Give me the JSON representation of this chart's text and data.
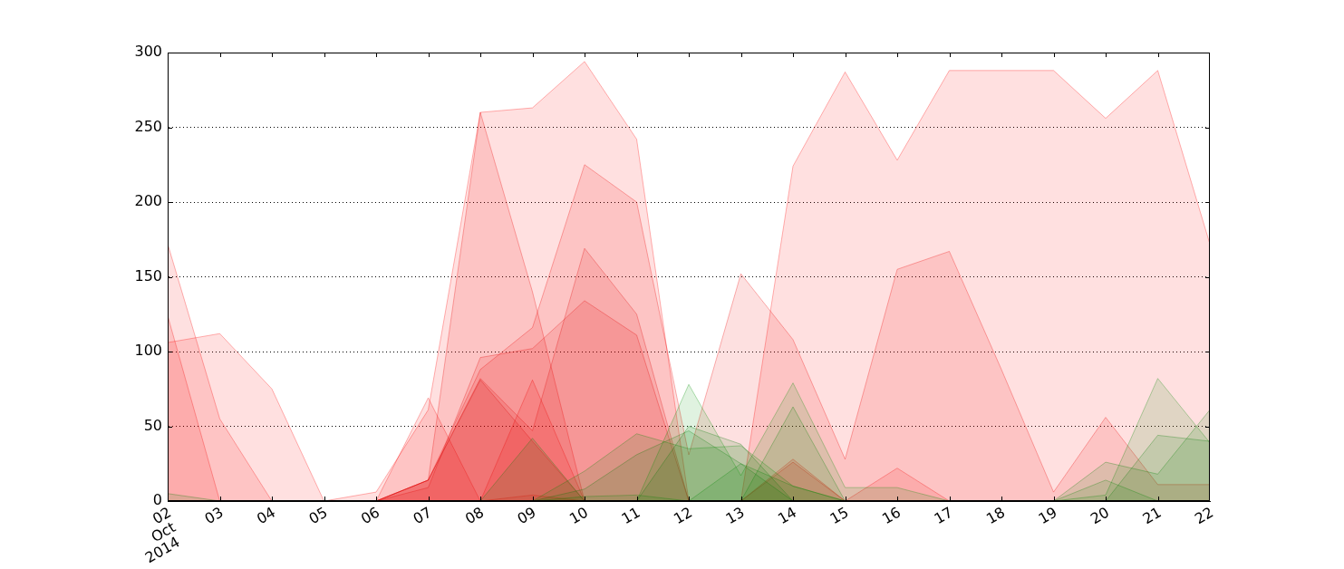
{
  "chart_data": {
    "type": "area",
    "x": [
      "2014-10-02",
      "2014-10-03",
      "2014-10-04",
      "2014-10-05",
      "2014-10-06",
      "2014-10-07",
      "2014-10-08",
      "2014-10-09",
      "2014-10-10",
      "2014-10-11",
      "2014-10-12",
      "2014-10-13",
      "2014-10-14",
      "2014-10-15",
      "2014-10-16",
      "2014-10-17",
      "2014-10-18",
      "2014-10-19",
      "2014-10-20",
      "2014-10-21",
      "2014-10-22"
    ],
    "series": [
      {
        "color": "#ff0000",
        "values": [
          106,
          112,
          75,
          0,
          6,
          61,
          260,
          263,
          294,
          242,
          0,
          0,
          224,
          287,
          228,
          288,
          288,
          288,
          256,
          288,
          172
        ]
      },
      {
        "color": "#fa0000",
        "values": [
          172,
          55,
          0,
          0,
          0,
          69,
          0,
          4,
          0,
          0,
          0,
          0,
          28,
          0,
          22,
          0,
          0,
          0,
          0,
          0,
          0
        ]
      },
      {
        "color": "#f50000",
        "values": [
          124,
          0,
          0,
          0,
          0,
          0,
          0,
          81,
          0,
          0,
          0,
          0,
          26,
          0,
          0,
          0,
          0,
          0,
          0,
          0,
          0
        ]
      },
      {
        "color": "#f00000",
        "values": [
          0,
          0,
          0,
          0,
          0,
          14,
          88,
          116,
          225,
          200,
          31,
          152,
          108,
          28,
          155,
          167,
          88,
          6,
          56,
          11,
          11
        ]
      },
      {
        "color": "#eb0000",
        "values": [
          0,
          0,
          0,
          0,
          0,
          14,
          260,
          140,
          0,
          0,
          0,
          0,
          0,
          0,
          0,
          0,
          0,
          0,
          0,
          0,
          0
        ]
      },
      {
        "color": "#e60000",
        "values": [
          0,
          0,
          0,
          0,
          0,
          9,
          96,
          102,
          134,
          111,
          0,
          0,
          0,
          0,
          0,
          0,
          0,
          0,
          0,
          0,
          0
        ]
      },
      {
        "color": "#e10000",
        "values": [
          0,
          0,
          0,
          0,
          0,
          14,
          82,
          47,
          169,
          125,
          0,
          0,
          0,
          0,
          0,
          0,
          0,
          0,
          0,
          0,
          0
        ]
      },
      {
        "color": "#dc0000",
        "values": [
          0,
          0,
          0,
          0,
          0,
          14,
          81,
          40,
          0,
          0,
          0,
          0,
          0,
          0,
          0,
          0,
          0,
          0,
          0,
          0,
          0
        ]
      },
      {
        "color": "#008000",
        "values": [
          5,
          0,
          0,
          0,
          0,
          0,
          0,
          42,
          0,
          0,
          0,
          0,
          63,
          0,
          0,
          0,
          0,
          0,
          26,
          18,
          61
        ]
      },
      {
        "color": "#008600",
        "values": [
          0,
          0,
          0,
          0,
          0,
          0,
          0,
          0,
          3,
          4,
          0,
          25,
          10,
          0,
          0,
          0,
          0,
          0,
          14,
          0,
          0
        ]
      },
      {
        "color": "#008c00",
        "values": [
          0,
          0,
          0,
          0,
          0,
          0,
          0,
          0,
          20,
          45,
          35,
          37,
          10,
          0,
          0,
          0,
          0,
          0,
          4,
          82,
          39
        ]
      },
      {
        "color": "#007a00",
        "values": [
          0,
          0,
          0,
          0,
          0,
          0,
          0,
          0,
          8,
          31,
          47,
          25,
          0,
          0,
          0,
          0,
          0,
          0,
          0,
          44,
          40
        ]
      },
      {
        "color": "#007400",
        "values": [
          0,
          0,
          0,
          0,
          0,
          0,
          0,
          0,
          0,
          0,
          50,
          38,
          0,
          0,
          0,
          0,
          0,
          0,
          0,
          0,
          0
        ]
      },
      {
        "color": "#009200",
        "values": [
          0,
          0,
          0,
          0,
          0,
          0,
          0,
          0,
          0,
          0,
          78,
          17,
          79,
          9,
          9,
          0,
          0,
          0,
          0,
          0,
          0
        ]
      }
    ],
    "xlim": [
      "2014-10-02",
      "2014-10-22"
    ],
    "xticks": [
      {
        "value": "2014-10-02",
        "label": "02\nOct\n2014"
      },
      {
        "value": "2014-10-03",
        "label": "03"
      },
      {
        "value": "2014-10-04",
        "label": "04"
      },
      {
        "value": "2014-10-05",
        "label": "05"
      },
      {
        "value": "2014-10-06",
        "label": "06"
      },
      {
        "value": "2014-10-07",
        "label": "07"
      },
      {
        "value": "2014-10-08",
        "label": "08"
      },
      {
        "value": "2014-10-09",
        "label": "09"
      },
      {
        "value": "2014-10-10",
        "label": "10"
      },
      {
        "value": "2014-10-11",
        "label": "11"
      },
      {
        "value": "2014-10-12",
        "label": "12"
      },
      {
        "value": "2014-10-13",
        "label": "13"
      },
      {
        "value": "2014-10-14",
        "label": "14"
      },
      {
        "value": "2014-10-15",
        "label": "15"
      },
      {
        "value": "2014-10-16",
        "label": "16"
      },
      {
        "value": "2014-10-17",
        "label": "17"
      },
      {
        "value": "2014-10-18",
        "label": "18"
      },
      {
        "value": "2014-10-19",
        "label": "19"
      },
      {
        "value": "2014-10-20",
        "label": "20"
      },
      {
        "value": "2014-10-21",
        "label": "21"
      },
      {
        "value": "2014-10-22",
        "label": "22"
      }
    ],
    "ylim": [
      0,
      300
    ],
    "yticks": [
      0,
      50,
      100,
      150,
      200,
      250,
      300
    ],
    "grid": "y"
  }
}
